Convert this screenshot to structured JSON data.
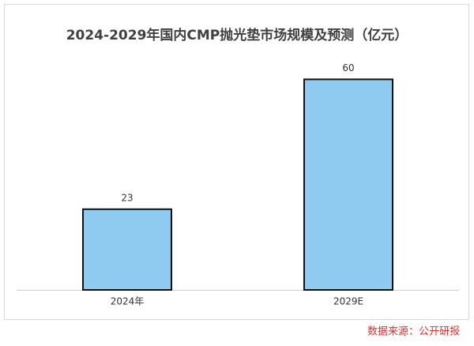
{
  "chart_data": {
    "type": "bar",
    "title": "2024-2029年国内CMP抛光垫市场规模及预测（亿元）",
    "categories": [
      "2024年",
      "2029E"
    ],
    "values": [
      23,
      60
    ],
    "color": "#8fcaf0",
    "ylim": [
      0,
      70
    ],
    "source": "数据来源：公开研报"
  }
}
